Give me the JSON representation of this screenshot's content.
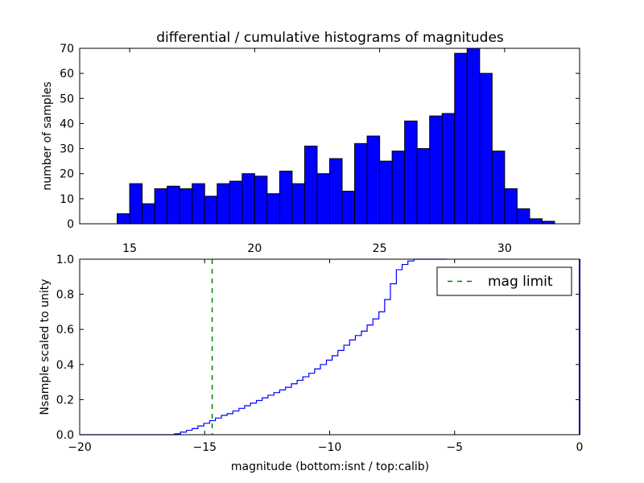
{
  "figure": {
    "colors": {
      "bar_fill": "#0000ff",
      "bar_edge": "#000000",
      "step_line": "#0000ff",
      "mag_limit": "#008000",
      "axes": "#000000",
      "background": "#ffffff"
    }
  },
  "chart_data": [
    {
      "type": "bar",
      "title": "differential / cumulative histograms of magnitudes",
      "xlabel": "",
      "ylabel": "number of samples",
      "xlim": [
        13.0,
        33.0
      ],
      "ylim": [
        0,
        70
      ],
      "xticks": [
        15,
        20,
        25,
        30
      ],
      "yticks": [
        0,
        10,
        20,
        30,
        40,
        50,
        60,
        70
      ],
      "bin_width": 0.5,
      "bins": [
        {
          "left": 14.5,
          "count": 4
        },
        {
          "left": 15.0,
          "count": 16
        },
        {
          "left": 15.5,
          "count": 8
        },
        {
          "left": 16.0,
          "count": 14
        },
        {
          "left": 16.5,
          "count": 15
        },
        {
          "left": 17.0,
          "count": 14
        },
        {
          "left": 17.5,
          "count": 16
        },
        {
          "left": 18.0,
          "count": 11
        },
        {
          "left": 18.5,
          "count": 16
        },
        {
          "left": 19.0,
          "count": 17
        },
        {
          "left": 19.5,
          "count": 20
        },
        {
          "left": 20.0,
          "count": 19
        },
        {
          "left": 20.5,
          "count": 12
        },
        {
          "left": 21.0,
          "count": 21
        },
        {
          "left": 21.5,
          "count": 16
        },
        {
          "left": 22.0,
          "count": 31
        },
        {
          "left": 22.5,
          "count": 20
        },
        {
          "left": 23.0,
          "count": 26
        },
        {
          "left": 23.5,
          "count": 13
        },
        {
          "left": 24.0,
          "count": 32
        },
        {
          "left": 24.5,
          "count": 35
        },
        {
          "left": 25.0,
          "count": 25
        },
        {
          "left": 25.5,
          "count": 29
        },
        {
          "left": 26.0,
          "count": 41
        },
        {
          "left": 26.5,
          "count": 30
        },
        {
          "left": 27.0,
          "count": 43
        },
        {
          "left": 27.5,
          "count": 44
        },
        {
          "left": 28.0,
          "count": 68
        },
        {
          "left": 28.5,
          "count": 70
        },
        {
          "left": 29.0,
          "count": 60
        },
        {
          "left": 29.5,
          "count": 29
        },
        {
          "left": 30.0,
          "count": 14
        },
        {
          "left": 30.5,
          "count": 6
        },
        {
          "left": 31.0,
          "count": 2
        },
        {
          "left": 31.5,
          "count": 1
        }
      ]
    },
    {
      "type": "line",
      "title": "",
      "xlabel": "magnitude (bottom:isnt / top:calib)",
      "ylabel": "Nsample scaled to unity",
      "xlim": [
        -20,
        0
      ],
      "ylim": [
        0.0,
        1.0
      ],
      "xticks": [
        -20,
        -15,
        -10,
        -5,
        0
      ],
      "yticks": [
        "0.0",
        "0.2",
        "0.4",
        "0.6",
        "0.8",
        "1.0"
      ],
      "legend": {
        "position": "top-right",
        "entries": [
          "mag limit"
        ]
      },
      "series": [
        {
          "name": "",
          "style": "step",
          "points": [
            [
              -20.0,
              0.0
            ],
            [
              -16.2,
              0.0
            ],
            [
              -16.2,
              0.005
            ],
            [
              -15.97,
              0.005
            ],
            [
              -15.97,
              0.015
            ],
            [
              -15.73,
              0.015
            ],
            [
              -15.73,
              0.025
            ],
            [
              -15.5,
              0.025
            ],
            [
              -15.5,
              0.035
            ],
            [
              -15.27,
              0.035
            ],
            [
              -15.27,
              0.05
            ],
            [
              -15.03,
              0.05
            ],
            [
              -15.03,
              0.065
            ],
            [
              -14.8,
              0.065
            ],
            [
              -14.8,
              0.08
            ],
            [
              -14.57,
              0.08
            ],
            [
              -14.57,
              0.095
            ],
            [
              -14.33,
              0.095
            ],
            [
              -14.33,
              0.11
            ],
            [
              -14.1,
              0.11
            ],
            [
              -14.1,
              0.12
            ],
            [
              -13.87,
              0.12
            ],
            [
              -13.87,
              0.135
            ],
            [
              -13.63,
              0.135
            ],
            [
              -13.63,
              0.15
            ],
            [
              -13.4,
              0.15
            ],
            [
              -13.4,
              0.165
            ],
            [
              -13.17,
              0.165
            ],
            [
              -13.17,
              0.18
            ],
            [
              -12.93,
              0.18
            ],
            [
              -12.93,
              0.195
            ],
            [
              -12.7,
              0.195
            ],
            [
              -12.7,
              0.21
            ],
            [
              -12.47,
              0.21
            ],
            [
              -12.47,
              0.225
            ],
            [
              -12.23,
              0.225
            ],
            [
              -12.23,
              0.24
            ],
            [
              -12.0,
              0.24
            ],
            [
              -12.0,
              0.255
            ],
            [
              -11.77,
              0.255
            ],
            [
              -11.77,
              0.27
            ],
            [
              -11.53,
              0.27
            ],
            [
              -11.53,
              0.29
            ],
            [
              -11.3,
              0.29
            ],
            [
              -11.3,
              0.31
            ],
            [
              -11.07,
              0.31
            ],
            [
              -11.07,
              0.33
            ],
            [
              -10.83,
              0.33
            ],
            [
              -10.83,
              0.35
            ],
            [
              -10.6,
              0.35
            ],
            [
              -10.6,
              0.375
            ],
            [
              -10.37,
              0.375
            ],
            [
              -10.37,
              0.4
            ],
            [
              -10.13,
              0.4
            ],
            [
              -10.13,
              0.425
            ],
            [
              -9.9,
              0.425
            ],
            [
              -9.9,
              0.45
            ],
            [
              -9.67,
              0.45
            ],
            [
              -9.67,
              0.48
            ],
            [
              -9.43,
              0.48
            ],
            [
              -9.43,
              0.51
            ],
            [
              -9.2,
              0.51
            ],
            [
              -9.2,
              0.54
            ],
            [
              -8.97,
              0.54
            ],
            [
              -8.97,
              0.565
            ],
            [
              -8.73,
              0.565
            ],
            [
              -8.73,
              0.59
            ],
            [
              -8.5,
              0.59
            ],
            [
              -8.5,
              0.625
            ],
            [
              -8.27,
              0.625
            ],
            [
              -8.27,
              0.66
            ],
            [
              -8.03,
              0.66
            ],
            [
              -8.03,
              0.7
            ],
            [
              -7.8,
              0.7
            ],
            [
              -7.8,
              0.77
            ],
            [
              -7.57,
              0.77
            ],
            [
              -7.57,
              0.86
            ],
            [
              -7.33,
              0.86
            ],
            [
              -7.33,
              0.94
            ],
            [
              -7.1,
              0.94
            ],
            [
              -7.1,
              0.97
            ],
            [
              -6.87,
              0.97
            ],
            [
              -6.87,
              0.99
            ],
            [
              -6.63,
              0.99
            ],
            [
              -6.63,
              1.0
            ],
            [
              -5.3,
              1.0
            ]
          ]
        },
        {
          "name": "mag limit",
          "style": "dashed-vertical",
          "x": -14.7
        }
      ],
      "right_edge_marker_x": 0
    }
  ]
}
